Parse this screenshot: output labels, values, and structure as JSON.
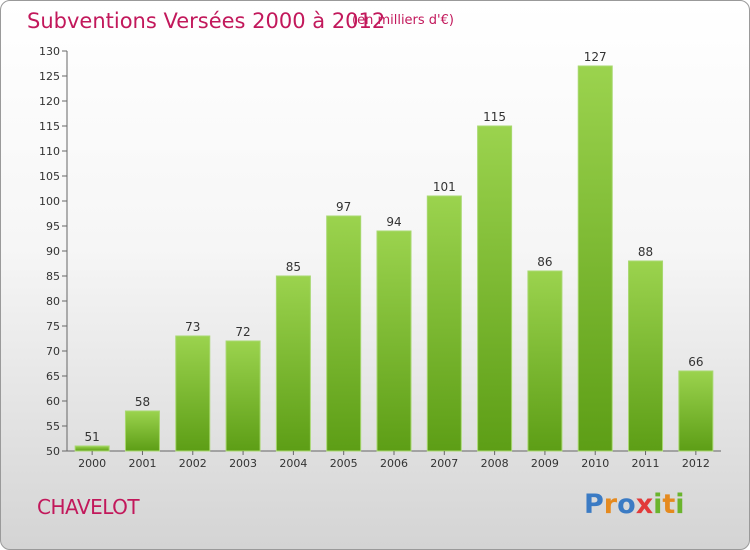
{
  "chart_data": {
    "type": "bar",
    "title": "Subventions Versées 2000 à 2012",
    "subtitle": "(en milliers d'€)",
    "categories": [
      "2000",
      "2001",
      "2002",
      "2003",
      "2004",
      "2005",
      "2006",
      "2007",
      "2008",
      "2009",
      "2010",
      "2011",
      "2012"
    ],
    "values": [
      51,
      58,
      73,
      72,
      85,
      97,
      94,
      101,
      115,
      86,
      127,
      88,
      66
    ],
    "ylim": [
      50,
      130
    ],
    "yticks": [
      50,
      55,
      60,
      65,
      70,
      75,
      80,
      85,
      90,
      95,
      100,
      105,
      110,
      115,
      120,
      125,
      130
    ],
    "grid": false,
    "bar_color": "#7cc230"
  },
  "commune": "CHAVELOT",
  "logo": {
    "letters": [
      "P",
      "r",
      "o",
      "x",
      "i",
      "t",
      "i"
    ],
    "colors": [
      "#3b7bc4",
      "#e58a1f",
      "#3b7bc4",
      "#e23a3a",
      "#6ab42d",
      "#e58a1f",
      "#6ab42d"
    ]
  }
}
